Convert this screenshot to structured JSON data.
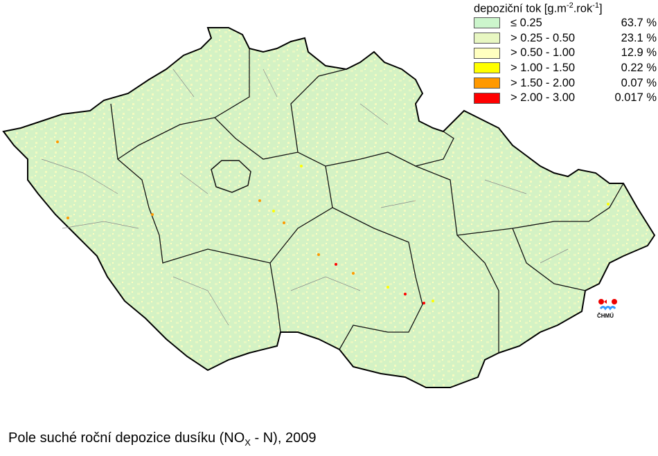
{
  "legend": {
    "title_main": "depoziční tok [g.m",
    "title_sup1": "-2",
    "title_mid": ".rok",
    "title_sup2": "-1",
    "title_end": "]",
    "classes": [
      {
        "label": "≤ 0.25",
        "percent": "63.7 %",
        "color": "#ccf5cc"
      },
      {
        "label": "> 0.25 - 0.50",
        "percent": "23.1 %",
        "color": "#e8f7c2"
      },
      {
        "label": "> 0.50 - 1.00",
        "percent": "12.9 %",
        "color": "#ffffc0"
      },
      {
        "label": "> 1.00 - 1.50",
        "percent": "0.22 %",
        "color": "#ffff00"
      },
      {
        "label": "> 1.50 - 2.00",
        "percent": "0.07 %",
        "color": "#ff9900"
      },
      {
        "label": "> 2.00 - 3.00",
        "percent": "0.017 %",
        "color": "#ff0000"
      }
    ]
  },
  "caption": {
    "main": "Pole suché roční depozice dusíku (NO",
    "sub": "X",
    "end": " - N), 2009"
  },
  "logo": {
    "text": "ČHMÚ"
  }
}
